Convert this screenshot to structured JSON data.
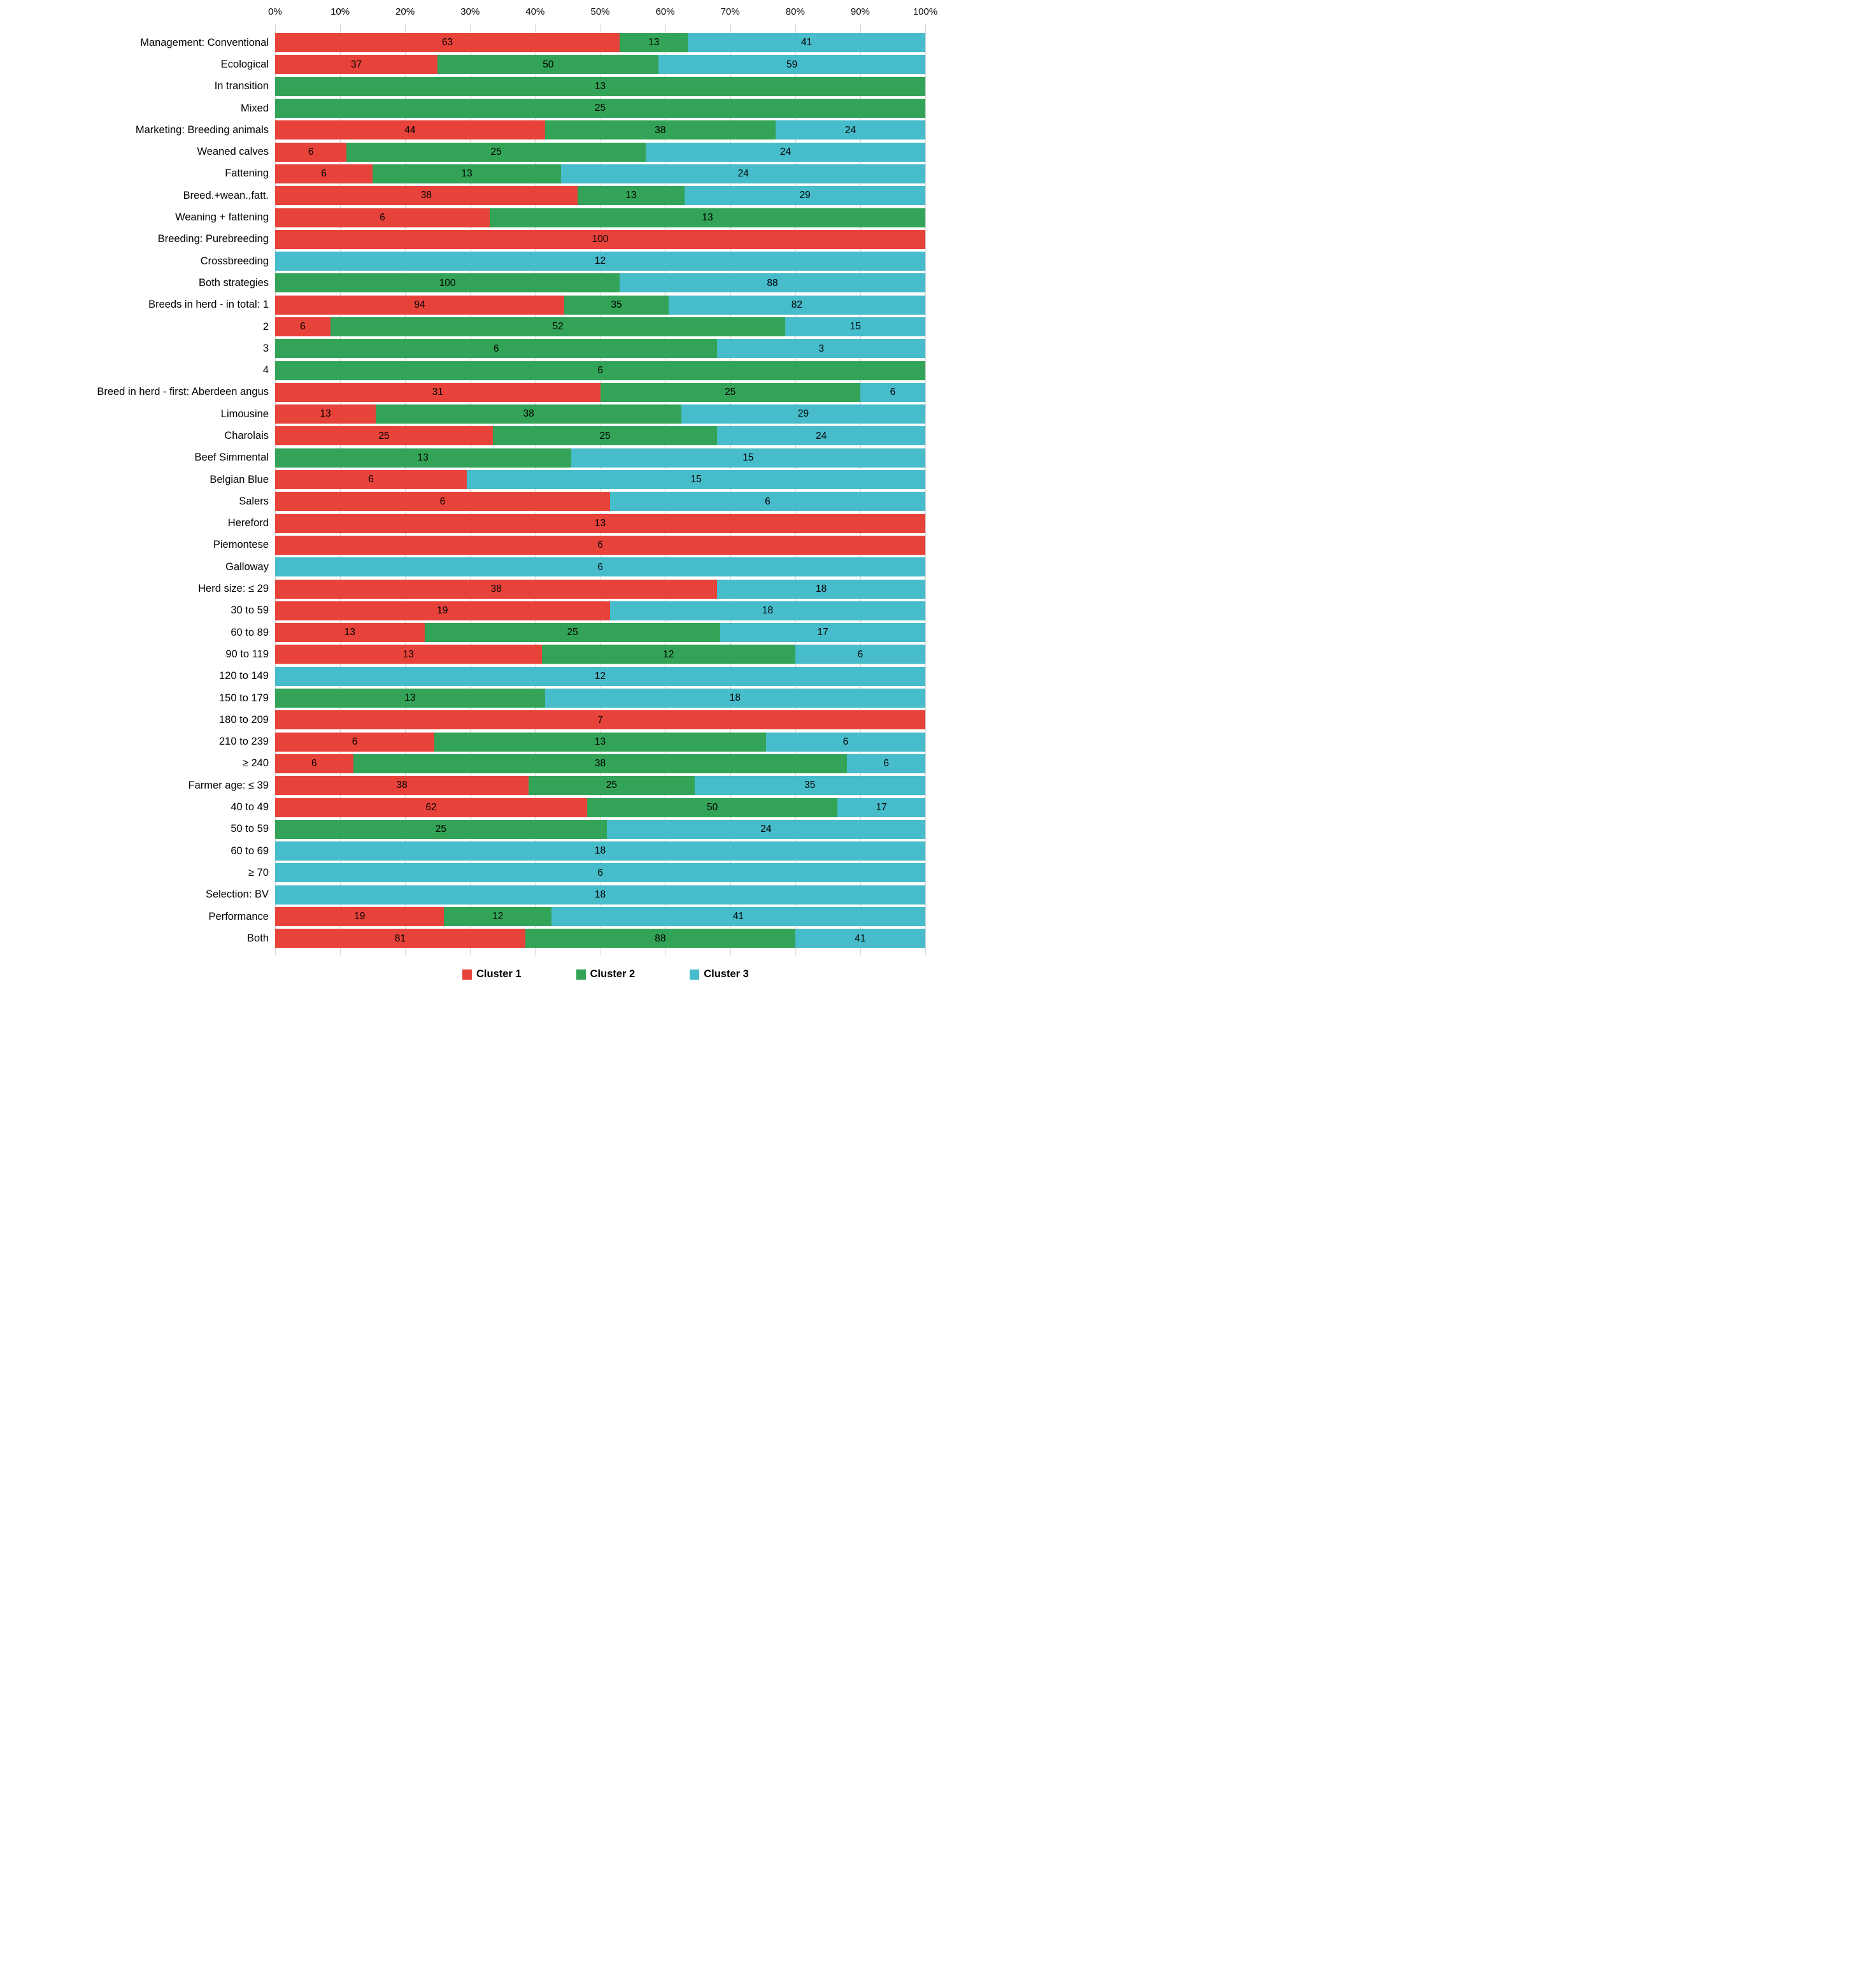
{
  "chart_data": {
    "type": "bar",
    "orientation": "horizontal-stacked",
    "title": "",
    "xlabel": "",
    "ylabel": "",
    "x_axis": {
      "range": [
        0,
        100
      ],
      "ticks": [
        "0%",
        "10%",
        "20%",
        "30%",
        "40%",
        "50%",
        "60%",
        "70%",
        "80%",
        "90%",
        "100%"
      ],
      "grid": true
    },
    "legend_position": "bottom",
    "legend": [
      {
        "name": "Cluster 1",
        "color": "#e8433a"
      },
      {
        "name": "Cluster 2",
        "color": "#33a457"
      },
      {
        "name": "Cluster 3",
        "color": "#47bccb"
      }
    ],
    "value_label_note": "numbers shown are % of farms within each cluster; segment widths are the share of each cluster in the row",
    "rows": [
      {
        "label": "Management: Conventional",
        "values": [
          63,
          13,
          41
        ],
        "widths": [
          53,
          10.5,
          36.5
        ]
      },
      {
        "label": "Ecological",
        "values": [
          37,
          50,
          59
        ],
        "widths": [
          25,
          34,
          41
        ]
      },
      {
        "label": "In transition",
        "values": [
          null,
          13,
          null
        ],
        "widths": [
          0,
          100,
          0
        ]
      },
      {
        "label": "Mixed",
        "values": [
          null,
          25,
          null
        ],
        "widths": [
          0,
          100,
          0
        ]
      },
      {
        "label": "Marketing: Breeding animals",
        "values": [
          44,
          38,
          24
        ],
        "widths": [
          41.5,
          35.5,
          23
        ]
      },
      {
        "label": "Weaned calves",
        "values": [
          6,
          25,
          24
        ],
        "widths": [
          11,
          46,
          43
        ]
      },
      {
        "label": "Fattening",
        "values": [
          6,
          13,
          24
        ],
        "widths": [
          15,
          29,
          56
        ]
      },
      {
        "label": "Breed.+wean.,fatt.",
        "values": [
          38,
          13,
          29
        ],
        "widths": [
          46.5,
          16.5,
          37
        ]
      },
      {
        "label": "Weaning + fattening",
        "values": [
          6,
          13,
          null
        ],
        "widths": [
          33,
          67,
          0
        ]
      },
      {
        "label": "Breeding: Purebreeding",
        "values": [
          100,
          null,
          null
        ],
        "widths": [
          100,
          0,
          0
        ]
      },
      {
        "label": "Crossbreeding",
        "values": [
          null,
          null,
          12
        ],
        "widths": [
          0,
          0,
          100
        ]
      },
      {
        "label": "Both strategies",
        "values": [
          null,
          100,
          88
        ],
        "widths": [
          0,
          53,
          47
        ]
      },
      {
        "label": "Breeds in herd - in total: 1",
        "values": [
          94,
          35,
          82
        ],
        "widths": [
          44.5,
          16,
          39.5
        ]
      },
      {
        "label": "2",
        "values": [
          6,
          52,
          15
        ],
        "widths": [
          8.5,
          70,
          21.5
        ]
      },
      {
        "label": "3",
        "values": [
          null,
          6,
          3
        ],
        "widths": [
          0,
          68,
          32
        ]
      },
      {
        "label": "4",
        "values": [
          null,
          6,
          null
        ],
        "widths": [
          0,
          100,
          0
        ]
      },
      {
        "label": "Breed in herd - first: Aberdeen angus",
        "values": [
          31,
          25,
          6
        ],
        "widths": [
          50,
          40,
          10
        ]
      },
      {
        "label": "Limousine",
        "values": [
          13,
          38,
          29
        ],
        "widths": [
          15.5,
          47,
          37.5
        ]
      },
      {
        "label": "Charolais",
        "values": [
          25,
          25,
          24
        ],
        "widths": [
          33.5,
          34.5,
          32
        ]
      },
      {
        "label": "Beef Simmental",
        "values": [
          null,
          13,
          15
        ],
        "widths": [
          0,
          45.5,
          54.5
        ]
      },
      {
        "label": "Belgian Blue",
        "values": [
          6,
          null,
          15
        ],
        "widths": [
          29.5,
          0,
          70.5
        ]
      },
      {
        "label": "Salers",
        "values": [
          6,
          null,
          6
        ],
        "widths": [
          51.5,
          0,
          48.5
        ]
      },
      {
        "label": "Hereford",
        "values": [
          13,
          null,
          null
        ],
        "widths": [
          100,
          0,
          0
        ]
      },
      {
        "label": "Piemontese",
        "values": [
          6,
          null,
          null
        ],
        "widths": [
          100,
          0,
          0
        ]
      },
      {
        "label": "Galloway",
        "values": [
          null,
          null,
          6
        ],
        "widths": [
          0,
          0,
          100
        ]
      },
      {
        "label": "Herd size: ≤ 29",
        "values": [
          38,
          null,
          18
        ],
        "widths": [
          68,
          0,
          32
        ]
      },
      {
        "label": "30 to 59",
        "values": [
          19,
          null,
          18
        ],
        "widths": [
          51.5,
          0,
          48.5
        ]
      },
      {
        "label": "60 to 89",
        "values": [
          13,
          25,
          17
        ],
        "widths": [
          23,
          45.5,
          31.5
        ]
      },
      {
        "label": "90 to 119",
        "values": [
          13,
          12,
          6
        ],
        "widths": [
          41,
          39,
          20
        ]
      },
      {
        "label": "120 to 149",
        "values": [
          null,
          null,
          12
        ],
        "widths": [
          0,
          0,
          100
        ]
      },
      {
        "label": "150 to 179",
        "values": [
          null,
          13,
          18
        ],
        "widths": [
          0,
          41.5,
          58.5
        ]
      },
      {
        "label": "180 to 209",
        "values": [
          7,
          null,
          null
        ],
        "widths": [
          100,
          0,
          0
        ]
      },
      {
        "label": "210 to 239",
        "values": [
          6,
          13,
          6
        ],
        "widths": [
          24.5,
          51,
          24.5
        ]
      },
      {
        "label": "≥ 240",
        "values": [
          6,
          38,
          6
        ],
        "widths": [
          12,
          76,
          12
        ]
      },
      {
        "label": "Farmer age: ≤ 39",
        "values": [
          38,
          25,
          35
        ],
        "widths": [
          39,
          25.5,
          35.5
        ]
      },
      {
        "label": "40 to 49",
        "values": [
          62,
          50,
          17
        ],
        "widths": [
          48,
          38.5,
          13.5
        ]
      },
      {
        "label": "50 to 59",
        "values": [
          null,
          25,
          24
        ],
        "widths": [
          0,
          51,
          49
        ]
      },
      {
        "label": "60 to 69",
        "values": [
          null,
          null,
          18
        ],
        "widths": [
          0,
          0,
          100
        ]
      },
      {
        "label": "≥ 70",
        "values": [
          null,
          null,
          6
        ],
        "widths": [
          0,
          0,
          100
        ]
      },
      {
        "label": "Selection: BV",
        "values": [
          null,
          null,
          18
        ],
        "widths": [
          0,
          0,
          100
        ]
      },
      {
        "label": "Performance",
        "values": [
          19,
          12,
          41
        ],
        "widths": [
          26,
          16.5,
          57.5
        ]
      },
      {
        "label": "Both",
        "values": [
          81,
          88,
          41
        ],
        "widths": [
          38.5,
          41.5,
          20
        ]
      }
    ]
  }
}
